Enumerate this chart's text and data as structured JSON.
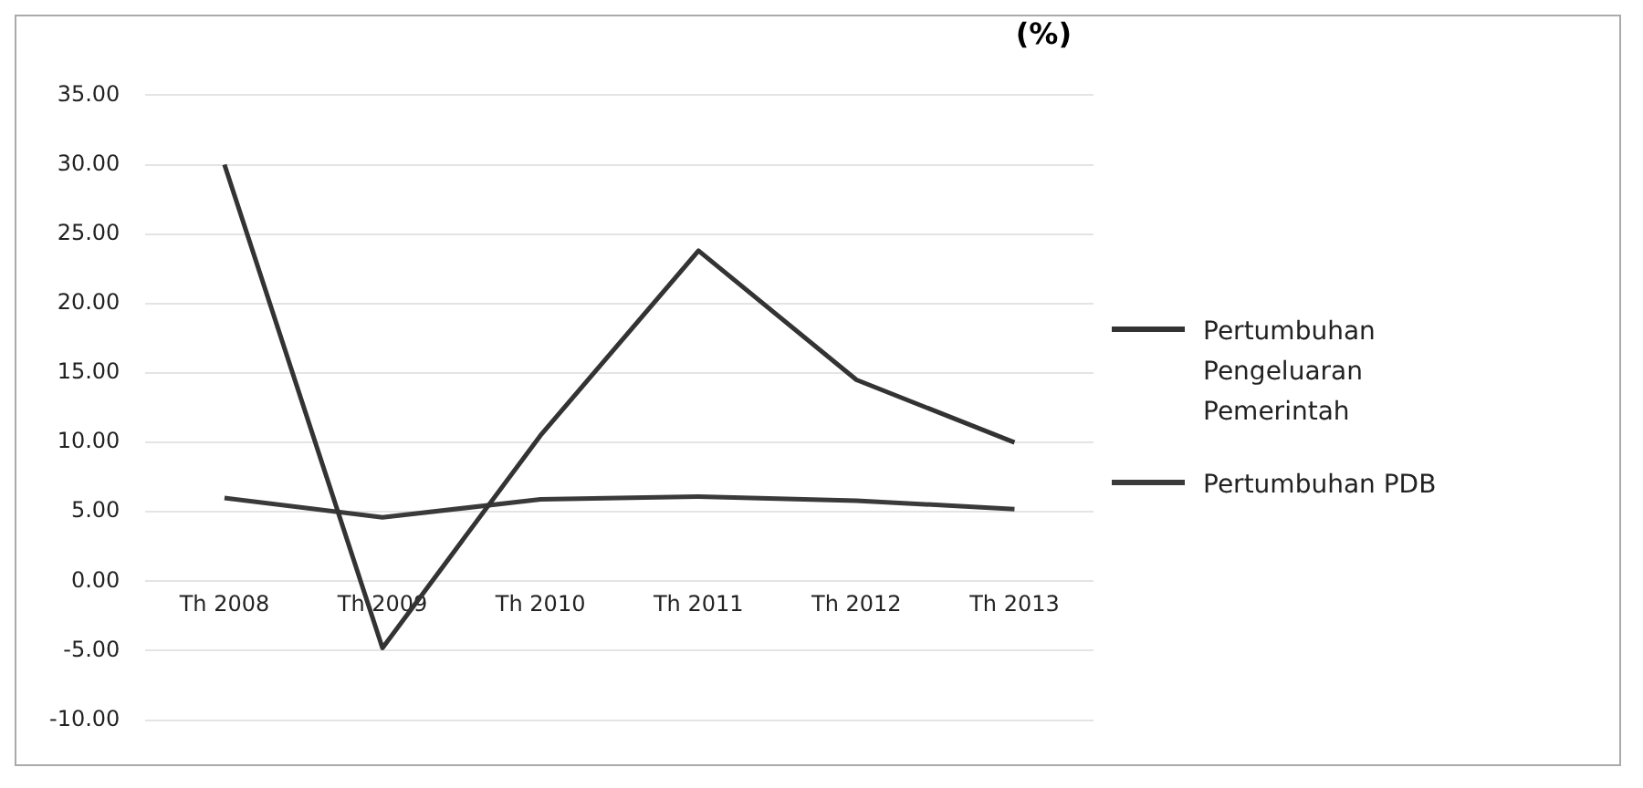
{
  "chart_data": {
    "type": "line",
    "title": "(%)",
    "categories": [
      "Th 2008",
      "Th 2009",
      "Th 2010",
      "Th 2011",
      "Th 2012",
      "Th 2013"
    ],
    "series": [
      {
        "name": "Pertumbuhan Pengeluaran Pemerintah",
        "color": "#333333",
        "values": [
          30.0,
          -4.8,
          10.5,
          23.8,
          14.5,
          10.0
        ]
      },
      {
        "name": "Pertumbuhan PDB",
        "color": "#3a3a3a",
        "values": [
          6.0,
          4.6,
          5.9,
          6.1,
          5.8,
          5.2
        ]
      }
    ],
    "ylim": [
      -10,
      35
    ],
    "yticks": [
      {
        "value": 35,
        "label": "35.00"
      },
      {
        "value": 30,
        "label": "30.00"
      },
      {
        "value": 25,
        "label": "25.00"
      },
      {
        "value": 20,
        "label": "20.00"
      },
      {
        "value": 15,
        "label": "15.00"
      },
      {
        "value": 10,
        "label": "10.00"
      },
      {
        "value": 5,
        "label": "5.00"
      },
      {
        "value": 0,
        "label": "0.00"
      },
      {
        "value": -5,
        "label": "-5.00"
      },
      {
        "value": -10,
        "label": "-10.00"
      }
    ],
    "grid": "y",
    "legend": "right",
    "marker": "none",
    "line_style": "solid"
  }
}
